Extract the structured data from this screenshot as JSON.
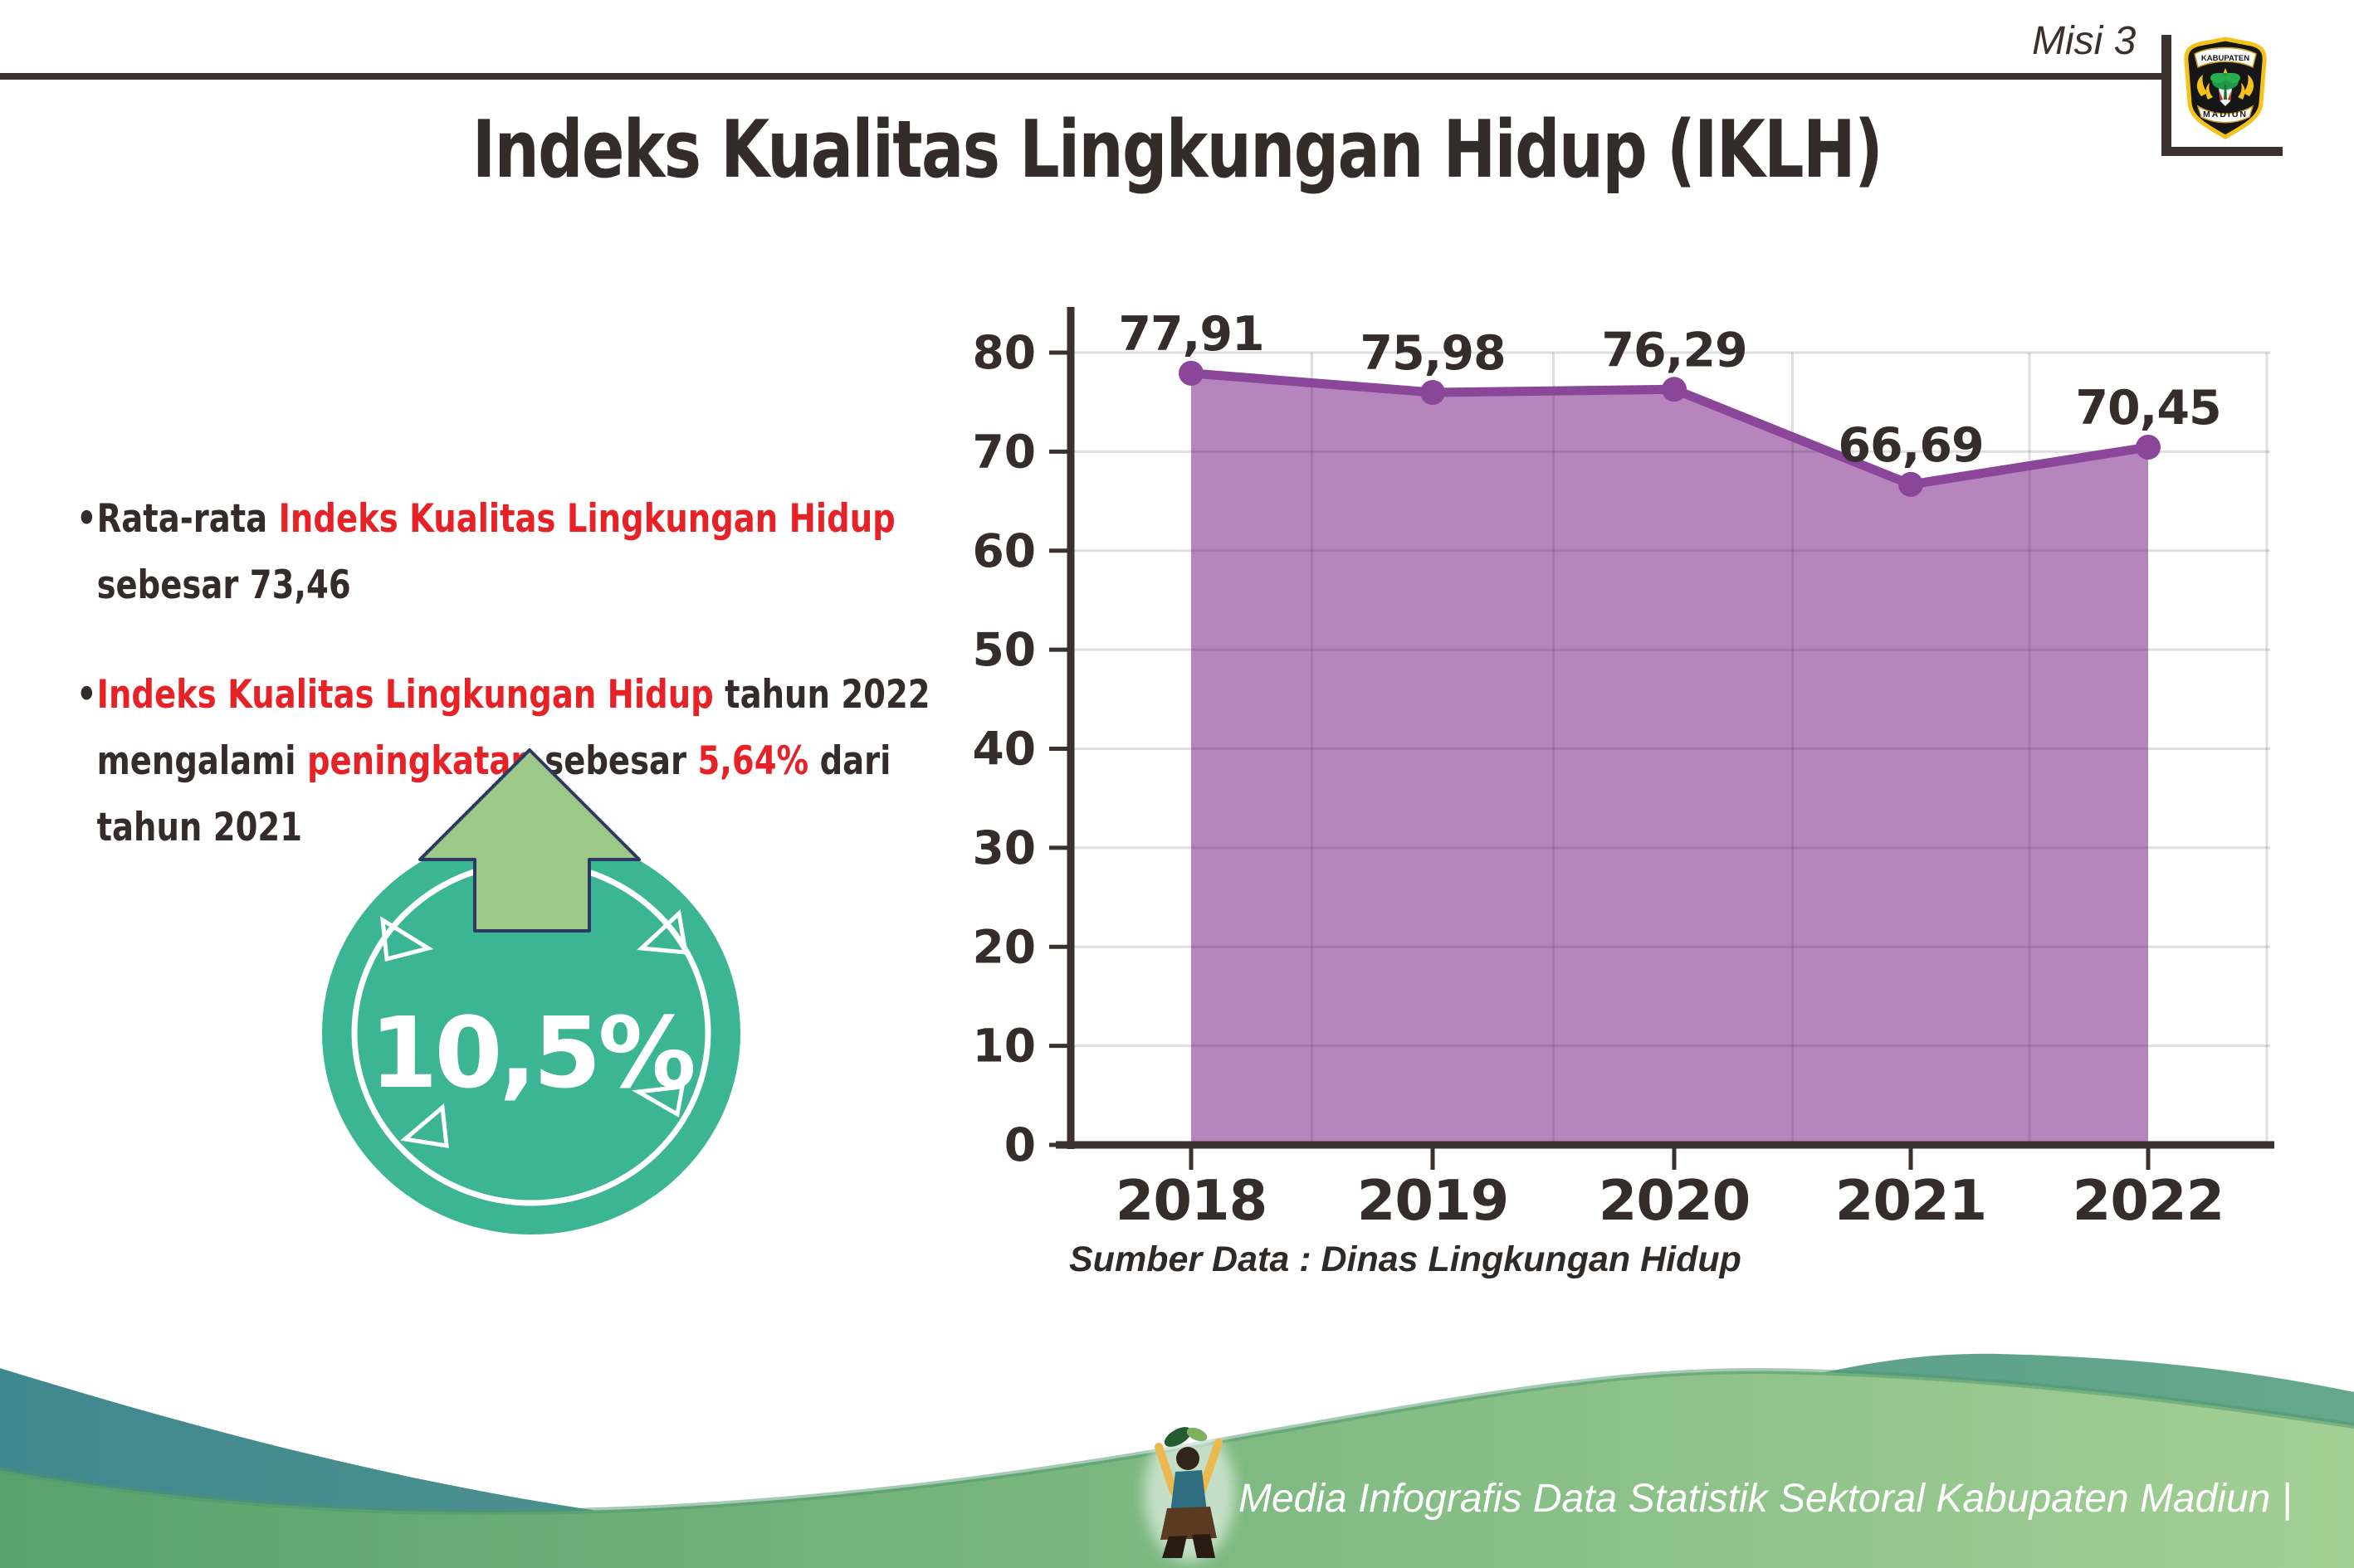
{
  "header": {
    "misi_label": "Misi 3",
    "logo": {
      "top_text": "KABUPATEN",
      "bottom_text": "MADIUN"
    }
  },
  "title": "Indeks Kualitas Lingkungan Hidup (IKLH)",
  "bullets": {
    "items": [
      {
        "segments": [
          {
            "t": "Rata-rata ",
            "c": "dark"
          },
          {
            "t": "Indeks Kualitas Lingkungan Hidup",
            "c": "red"
          },
          {
            "br": true
          },
          {
            "t": "sebesar 73,46",
            "c": "dark"
          }
        ]
      },
      {
        "segments": [
          {
            "t": "Indeks Kualitas Lingkungan Hidup",
            "c": "red"
          },
          {
            "t": " tahun 2022",
            "c": "dark"
          },
          {
            "br": true
          },
          {
            "t": "mengalami ",
            "c": "dark"
          },
          {
            "t": "peningkatan",
            "c": "red"
          },
          {
            "t": " sebesar ",
            "c": "dark"
          },
          {
            "t": "5,64%",
            "c": "red"
          },
          {
            "t": " dari",
            "c": "dark"
          },
          {
            "br": true
          },
          {
            "t": "tahun 2021",
            "c": "dark"
          }
        ]
      }
    ]
  },
  "badge": {
    "value": "10,5%",
    "icon": "up-arrow-icon",
    "circle_color": "#3cb594",
    "arrow_color": "#9cc888",
    "arrow_outline_color": "#2c3a63"
  },
  "chart_data": {
    "type": "area",
    "categories": [
      "2018",
      "2019",
      "2020",
      "2021",
      "2022"
    ],
    "values": [
      77.91,
      75.98,
      76.29,
      66.69,
      70.45
    ],
    "value_labels": [
      "77,91",
      "75,98",
      "76,29",
      "66,69",
      "70,45"
    ],
    "title": "",
    "xlabel": "",
    "ylabel": "",
    "ylim": [
      0,
      80
    ],
    "ytick_step": 10,
    "grid": true,
    "legend": "none",
    "line_color": "#8a4698",
    "fill_color": "#b685bd",
    "source": "Sumber Data : Dinas Lingkungan Hidup"
  },
  "footer": {
    "tagline": "Media Infografis Data Statistik Sektoral Kabupaten Madiun |",
    "mascot_icon": "mascot-icon",
    "wave_teal_left": "#40888f",
    "wave_teal_right": "#66a88c",
    "wave_green_left": "#58a26e",
    "wave_green_right": "#a3cf95"
  },
  "colors": {
    "accent_red": "#e62227",
    "ink": "#342c2a",
    "axis": "#3a312e",
    "gridline": "#463248"
  }
}
